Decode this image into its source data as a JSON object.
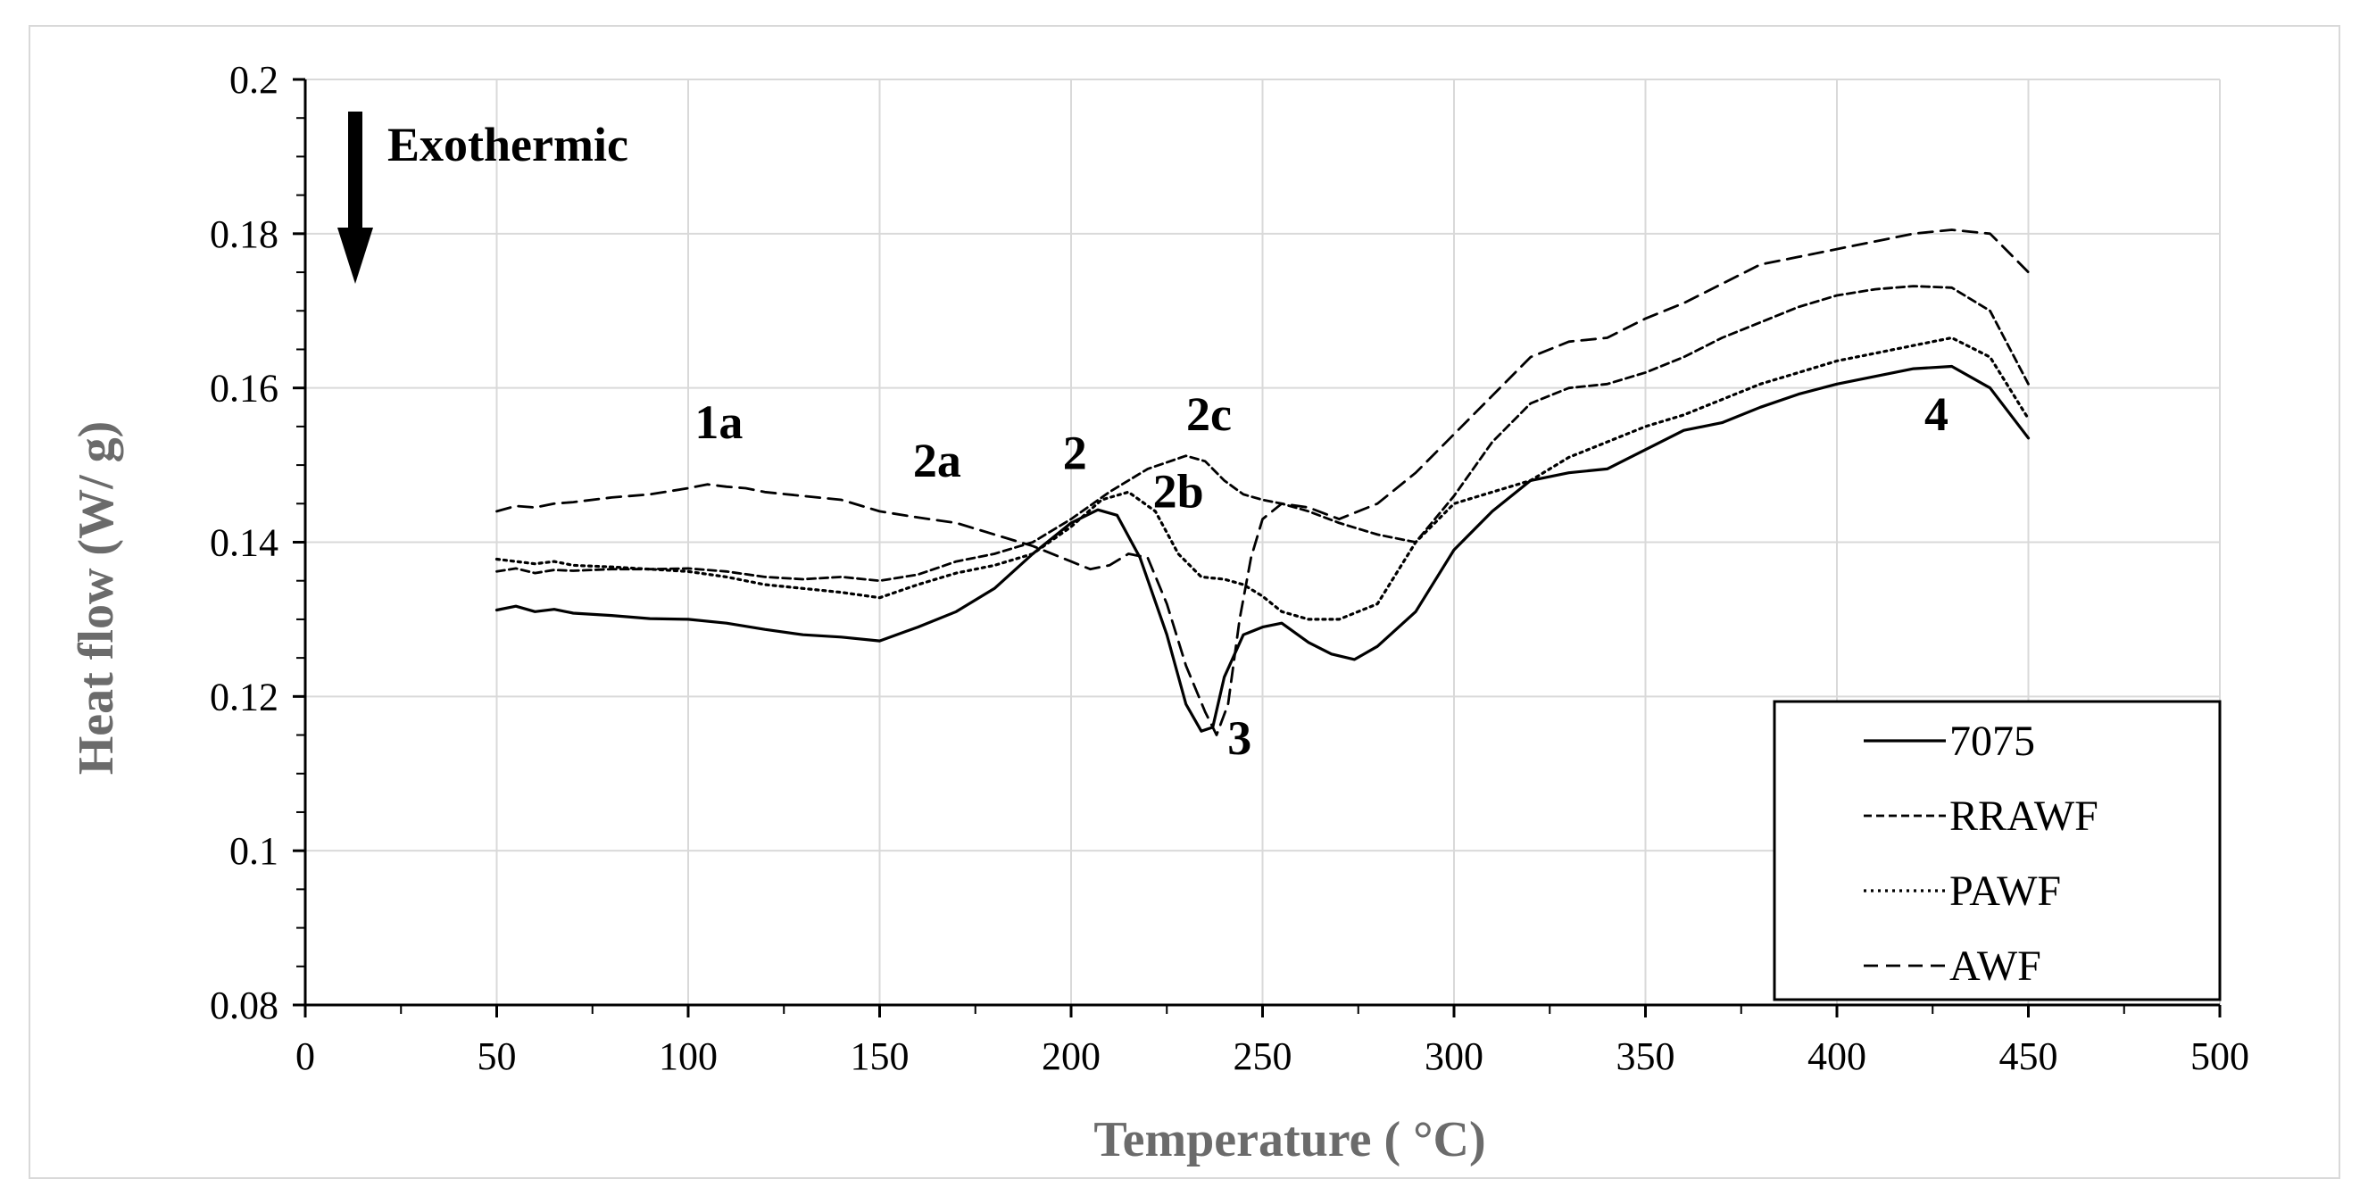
{
  "chart_data": {
    "type": "line",
    "xlabel": "Temperature ( °C)",
    "ylabel": "Heat flow (W/ g)",
    "xlim": [
      0,
      500
    ],
    "ylim": [
      0.08,
      0.2
    ],
    "xticks": [
      0,
      50,
      100,
      150,
      200,
      250,
      300,
      350,
      400,
      450,
      500
    ],
    "yticks": [
      0.08,
      0.1,
      0.12,
      0.14,
      0.16,
      0.18,
      0.2
    ],
    "ytick_labels": [
      "0.08",
      "0.1",
      "0.12",
      "0.14",
      "0.16",
      "0.18",
      "0.2"
    ],
    "grid": true,
    "legend_position": "bottom-right",
    "direction_label": "Exothermic",
    "annotations": [
      {
        "text": "1a",
        "x": 108,
        "y": 0.1535
      },
      {
        "text": "2a",
        "x": 165,
        "y": 0.1485
      },
      {
        "text": "2",
        "x": 201,
        "y": 0.1495
      },
      {
        "text": "2b",
        "x": 228,
        "y": 0.1445
      },
      {
        "text": "2c",
        "x": 236,
        "y": 0.1545
      },
      {
        "text": "3",
        "x": 244,
        "y": 0.1125
      },
      {
        "text": "4",
        "x": 426,
        "y": 0.1545
      }
    ],
    "series": [
      {
        "name": "7075",
        "style": "solid",
        "x": [
          50,
          55,
          60,
          65,
          70,
          80,
          90,
          100,
          110,
          120,
          130,
          140,
          150,
          160,
          170,
          180,
          190,
          200,
          207,
          212,
          218,
          225,
          230,
          234,
          237,
          240,
          245,
          250,
          255,
          262,
          268,
          274,
          280,
          290,
          300,
          310,
          320,
          330,
          340,
          350,
          360,
          370,
          380,
          390,
          400,
          410,
          420,
          430,
          440,
          450
        ],
        "values": [
          0.1312,
          0.1317,
          0.131,
          0.1313,
          0.1308,
          0.1305,
          0.1301,
          0.13,
          0.1295,
          0.1287,
          0.128,
          0.1277,
          0.1272,
          0.129,
          0.131,
          0.134,
          0.1385,
          0.1425,
          0.1442,
          0.1435,
          0.138,
          0.128,
          0.119,
          0.1155,
          0.116,
          0.1225,
          0.128,
          0.129,
          0.1295,
          0.127,
          0.1255,
          0.1248,
          0.1265,
          0.131,
          0.139,
          0.144,
          0.148,
          0.149,
          0.1495,
          0.152,
          0.1545,
          0.1555,
          0.1575,
          0.1592,
          0.1605,
          0.1615,
          0.1625,
          0.1628,
          0.16,
          0.1535
        ]
      },
      {
        "name": "RRAWF",
        "style": "dashed-fine",
        "x": [
          50,
          55,
          60,
          65,
          70,
          80,
          90,
          100,
          110,
          120,
          130,
          140,
          150,
          160,
          170,
          180,
          190,
          200,
          210,
          220,
          230,
          235,
          240,
          245,
          250,
          255,
          262,
          270,
          280,
          290,
          300,
          310,
          320,
          330,
          340,
          350,
          360,
          370,
          380,
          390,
          400,
          410,
          420,
          430,
          440,
          450
        ],
        "values": [
          0.1362,
          0.1366,
          0.136,
          0.1364,
          0.1363,
          0.1365,
          0.1365,
          0.1366,
          0.1362,
          0.1355,
          0.1352,
          0.1355,
          0.135,
          0.1358,
          0.1375,
          0.1385,
          0.14,
          0.143,
          0.1465,
          0.1495,
          0.1512,
          0.1505,
          0.148,
          0.1462,
          0.1455,
          0.145,
          0.144,
          0.1425,
          0.141,
          0.14,
          0.146,
          0.153,
          0.158,
          0.16,
          0.1605,
          0.162,
          0.164,
          0.1665,
          0.1685,
          0.1705,
          0.172,
          0.1728,
          0.1732,
          0.173,
          0.17,
          0.1605
        ]
      },
      {
        "name": "PAWF",
        "style": "dotted",
        "x": [
          50,
          55,
          60,
          65,
          70,
          80,
          90,
          100,
          110,
          120,
          130,
          140,
          150,
          160,
          170,
          180,
          190,
          200,
          208,
          215,
          222,
          228,
          234,
          240,
          245,
          250,
          255,
          262,
          270,
          280,
          290,
          300,
          310,
          320,
          330,
          340,
          350,
          360,
          370,
          380,
          390,
          400,
          410,
          420,
          430,
          440,
          450
        ],
        "values": [
          0.1378,
          0.1375,
          0.1372,
          0.1375,
          0.137,
          0.1368,
          0.1365,
          0.1362,
          0.1355,
          0.1345,
          0.134,
          0.1335,
          0.1328,
          0.1345,
          0.136,
          0.137,
          0.1385,
          0.142,
          0.1455,
          0.1465,
          0.144,
          0.1385,
          0.1355,
          0.1352,
          0.1345,
          0.133,
          0.131,
          0.13,
          0.13,
          0.132,
          0.14,
          0.145,
          0.1465,
          0.148,
          0.151,
          0.153,
          0.155,
          0.1565,
          0.1585,
          0.1605,
          0.162,
          0.1635,
          0.1645,
          0.1655,
          0.1665,
          0.164,
          0.156
        ]
      },
      {
        "name": "AWF",
        "style": "dashed",
        "x": [
          50,
          55,
          60,
          65,
          70,
          80,
          90,
          100,
          105,
          110,
          115,
          120,
          130,
          140,
          150,
          160,
          170,
          180,
          190,
          200,
          205,
          210,
          215,
          220,
          225,
          230,
          235,
          238,
          241,
          244,
          247,
          250,
          255,
          262,
          270,
          280,
          290,
          300,
          310,
          320,
          330,
          340,
          350,
          360,
          370,
          380,
          390,
          400,
          410,
          420,
          430,
          440,
          450
        ],
        "values": [
          0.144,
          0.1447,
          0.1445,
          0.145,
          0.1452,
          0.1458,
          0.1462,
          0.147,
          0.1475,
          0.1472,
          0.147,
          0.1465,
          0.146,
          0.1455,
          0.144,
          0.1432,
          0.1425,
          0.141,
          0.1395,
          0.1375,
          0.1365,
          0.137,
          0.1385,
          0.138,
          0.132,
          0.124,
          0.118,
          0.115,
          0.119,
          0.13,
          0.138,
          0.143,
          0.145,
          0.1445,
          0.143,
          0.145,
          0.149,
          0.154,
          0.159,
          0.164,
          0.166,
          0.1665,
          0.169,
          0.171,
          0.1735,
          0.176,
          0.177,
          0.178,
          0.179,
          0.18,
          0.1805,
          0.18,
          0.175
        ]
      }
    ]
  }
}
